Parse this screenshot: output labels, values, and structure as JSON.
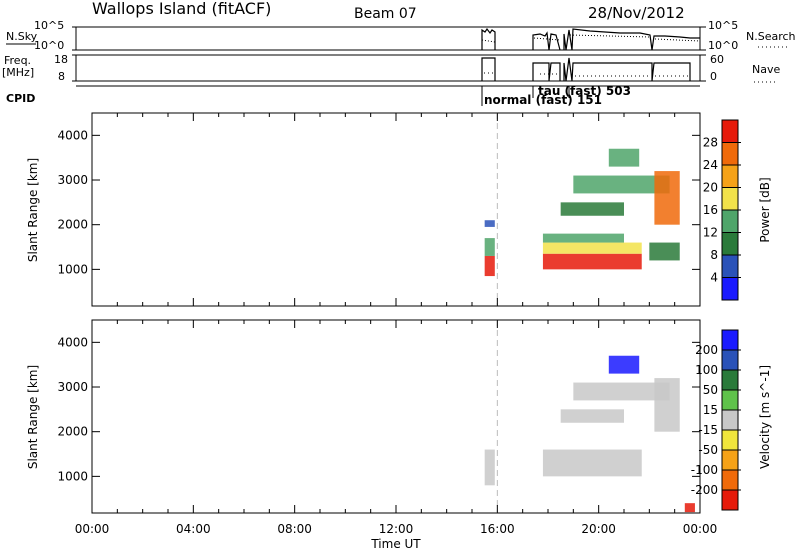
{
  "header": {
    "title": "Wallops Island (fitACF)",
    "beam": "Beam 07",
    "date": "28/Nov/2012"
  },
  "sky_panel": {
    "left_label": "N.Sky",
    "left_ticks": [
      "10^5",
      "10^0"
    ],
    "right_ticks": [
      "10^5",
      "10^0"
    ],
    "right_label": "N.Search"
  },
  "freq_panel": {
    "left_label_1": "Freq.",
    "left_label_2": "[MHz]",
    "left_ticks": [
      "18",
      "8"
    ],
    "right_ticks": [
      "60",
      "0"
    ],
    "right_label": "Nave"
  },
  "cpid_panel": {
    "label": "CPID",
    "annotations": [
      "normal (fast) 151",
      "tau (fast) 503"
    ]
  },
  "colors": {
    "power": [
      "#1a1aff",
      "#2a52b8",
      "#2a7a3a",
      "#4fa56a",
      "#f2e24a",
      "#f5a218",
      "#f06a0a",
      "#e61a0a"
    ],
    "velocity": [
      "#1a1aff",
      "#2a52b8",
      "#2a7a3a",
      "#5fc24a",
      "#c8c8c8",
      "#f0e63c",
      "#f5a218",
      "#f06a0a",
      "#e61a0a"
    ]
  },
  "chart_data": [
    {
      "type": "heatmap",
      "name": "Power",
      "xlabel": "",
      "ylabel": "Slant Range [km]",
      "xlim": [
        0,
        24
      ],
      "ylim": [
        180,
        4500
      ],
      "yticks": [
        1000,
        2000,
        3000,
        4000
      ],
      "colorbar": {
        "label": "Power [dB]",
        "ticks": [
          4,
          8,
          12,
          16,
          20,
          24,
          28
        ],
        "range": [
          0,
          32
        ]
      },
      "annotations": [
        {
          "x": 16.0,
          "type": "dashed-line"
        }
      ],
      "regions": [
        {
          "t0": 15.5,
          "t1": 15.9,
          "r0": 850,
          "r1": 1300,
          "value": 28
        },
        {
          "t0": 15.5,
          "t1": 15.9,
          "r0": 1300,
          "r1": 1700,
          "value": 12
        },
        {
          "t0": 15.5,
          "t1": 15.9,
          "r0": 1950,
          "r1": 2100,
          "value": 6
        },
        {
          "t0": 17.8,
          "t1": 21.7,
          "r0": 1000,
          "r1": 1350,
          "value": 28
        },
        {
          "t0": 17.8,
          "t1": 21.7,
          "r0": 1350,
          "r1": 1600,
          "value": 18
        },
        {
          "t0": 17.8,
          "t1": 21.0,
          "r0": 1600,
          "r1": 1800,
          "value": 12
        },
        {
          "t0": 18.5,
          "t1": 21.0,
          "r0": 2200,
          "r1": 2500,
          "value": 10
        },
        {
          "t0": 19.0,
          "t1": 22.8,
          "r0": 2700,
          "r1": 3100,
          "value": 14
        },
        {
          "t0": 20.4,
          "t1": 21.6,
          "r0": 3300,
          "r1": 3700,
          "value": 14
        },
        {
          "t0": 22.2,
          "t1": 23.2,
          "r0": 2000,
          "r1": 3200,
          "value": 24
        },
        {
          "t0": 22.0,
          "t1": 23.2,
          "r0": 1200,
          "r1": 1600,
          "value": 8
        }
      ]
    },
    {
      "type": "heatmap",
      "name": "Velocity",
      "xlabel": "Time UT",
      "ylabel": "Slant Range [km]",
      "xlim": [
        0,
        24
      ],
      "ylim": [
        180,
        4500
      ],
      "xticks": [
        "00:00",
        "04:00",
        "08:00",
        "12:00",
        "16:00",
        "20:00",
        "00:00"
      ],
      "yticks": [
        1000,
        2000,
        3000,
        4000
      ],
      "colorbar": {
        "label": "Velocity [m s^-1]",
        "ticks": [
          200,
          100,
          50,
          15,
          -15,
          -50,
          -100,
          -200
        ]
      },
      "annotations": [
        {
          "x": 16.0,
          "type": "dashed-line"
        }
      ],
      "regions": [
        {
          "t0": 15.5,
          "t1": 15.9,
          "r0": 800,
          "r1": 1600,
          "value": 0
        },
        {
          "t0": 17.8,
          "t1": 21.7,
          "r0": 1000,
          "r1": 1600,
          "value": 0
        },
        {
          "t0": 18.5,
          "t1": 21.0,
          "r0": 2200,
          "r1": 2500,
          "value": 0
        },
        {
          "t0": 19.0,
          "t1": 22.8,
          "r0": 2700,
          "r1": 3100,
          "value": 0
        },
        {
          "t0": 22.2,
          "t1": 23.2,
          "r0": 2000,
          "r1": 3200,
          "value": 0
        },
        {
          "t0": 20.4,
          "t1": 21.6,
          "r0": 3300,
          "r1": 3700,
          "value": 250
        },
        {
          "t0": 23.4,
          "t1": 23.8,
          "r0": 200,
          "r1": 400,
          "value": -250
        }
      ]
    }
  ]
}
